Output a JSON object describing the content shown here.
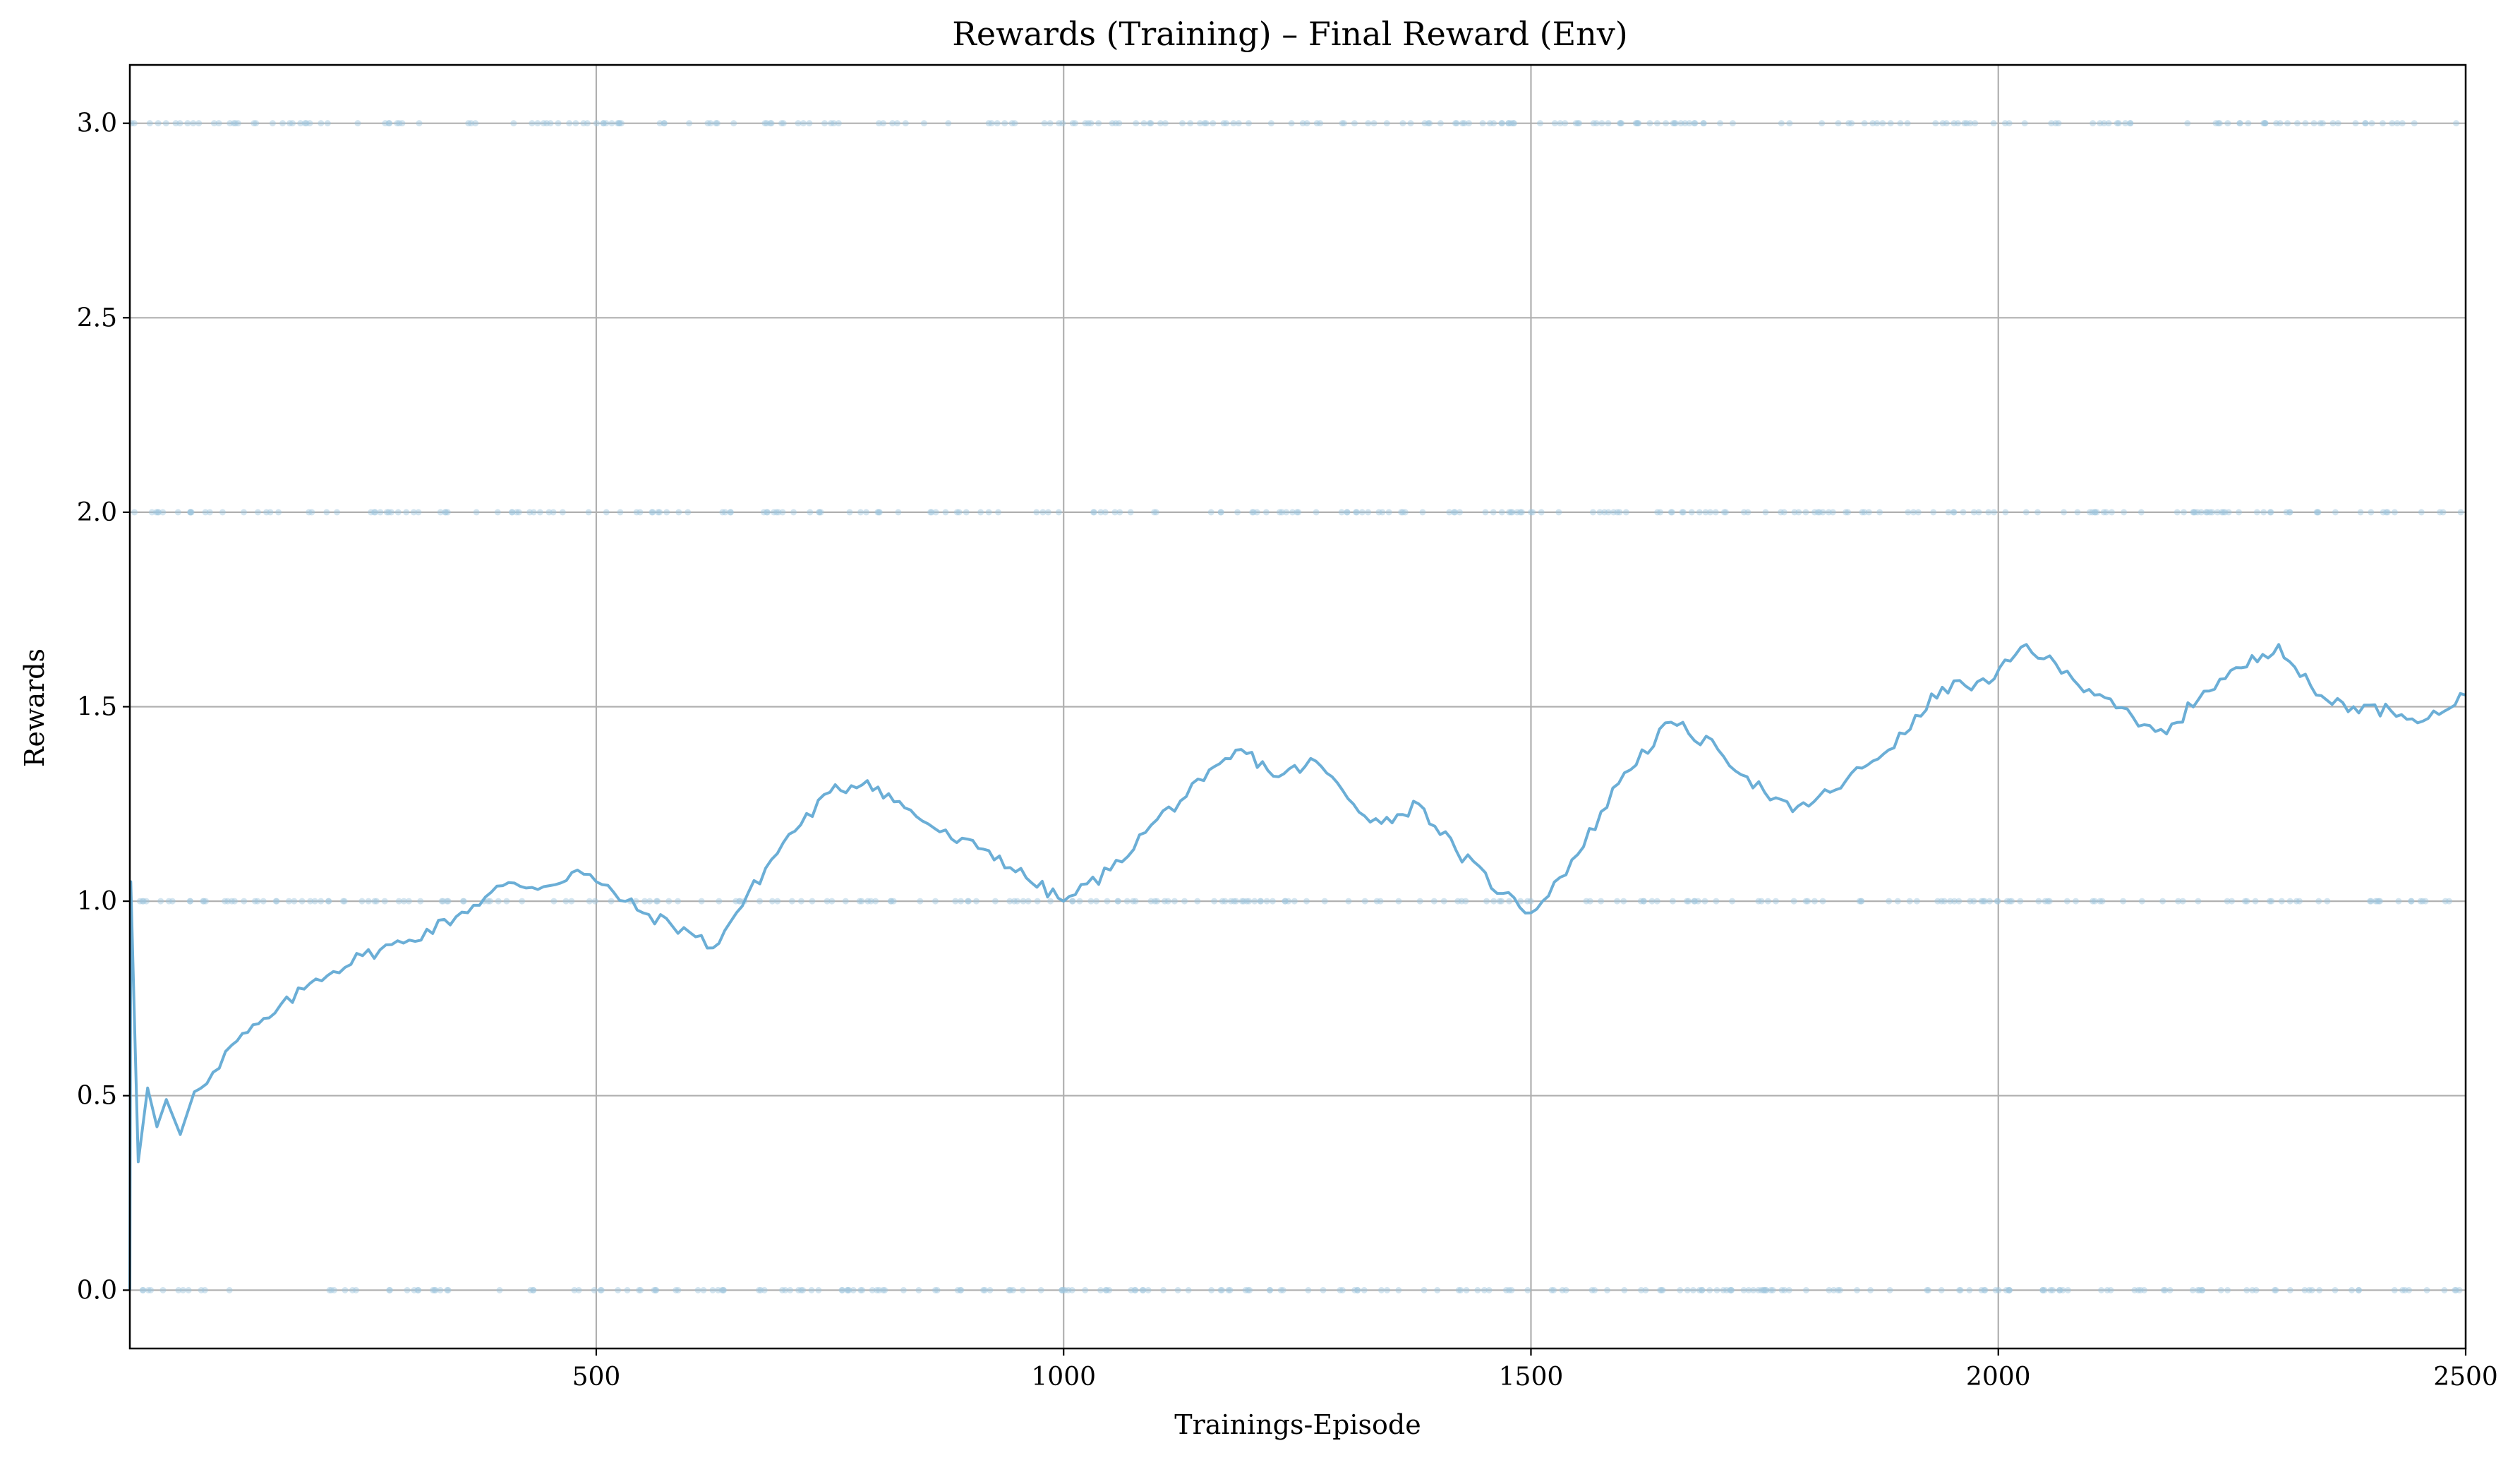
{
  "chart_data": {
    "type": "line",
    "title": "Rewards (Training) – Final Reward (Env)",
    "xlabel": "Trainings-Episode",
    "ylabel": "Rewards",
    "xlim": [
      1,
      2500
    ],
    "ylim": [
      -0.15,
      3.15
    ],
    "x_ticks": [
      500,
      1000,
      1500,
      2000,
      2500
    ],
    "x_tick_labels": [
      "500",
      "1000",
      "1500",
      "2000",
      "2500"
    ],
    "y_ticks": [
      0.0,
      0.5,
      1.0,
      1.5,
      2.0,
      2.5,
      3.0
    ],
    "y_tick_labels": [
      "0.0",
      "0.5",
      "1.0",
      "1.5",
      "2.0",
      "2.5",
      "3.0"
    ],
    "grid": true,
    "colors": {
      "line": "#6baed6",
      "points": "#9ec5de"
    },
    "series": [
      {
        "kind": "scatter",
        "description_levels": [
          0,
          1,
          2,
          3
        ],
        "points_per_level": 260
      },
      {
        "kind": "line",
        "x": [
          1,
          2,
          10,
          20,
          30,
          40,
          55,
          70,
          90,
          110,
          150,
          200,
          250,
          300,
          350,
          400,
          450,
          480,
          500,
          550,
          600,
          625,
          650,
          700,
          750,
          790,
          830,
          880,
          920,
          960,
          1000,
          1050,
          1100,
          1150,
          1190,
          1230,
          1270,
          1310,
          1340,
          1380,
          1420,
          1470,
          1500,
          1550,
          1600,
          1650,
          1700,
          1750,
          1780,
          1820,
          1860,
          1900,
          1940,
          1990,
          2030,
          2080,
          2120,
          2150,
          2180,
          2220,
          2260,
          2300,
          2340,
          2380,
          2420,
          2460,
          2500
        ],
        "y": [
          0.0,
          1.05,
          0.33,
          0.52,
          0.42,
          0.49,
          0.4,
          0.51,
          0.56,
          0.63,
          0.7,
          0.8,
          0.86,
          0.9,
          0.96,
          1.04,
          1.04,
          1.08,
          1.05,
          0.97,
          0.92,
          0.88,
          0.97,
          1.15,
          1.28,
          1.31,
          1.24,
          1.16,
          1.13,
          1.06,
          1.0,
          1.08,
          1.21,
          1.31,
          1.39,
          1.32,
          1.36,
          1.25,
          1.2,
          1.25,
          1.13,
          1.02,
          0.97,
          1.12,
          1.33,
          1.46,
          1.39,
          1.28,
          1.23,
          1.28,
          1.35,
          1.43,
          1.55,
          1.56,
          1.66,
          1.57,
          1.52,
          1.45,
          1.43,
          1.54,
          1.6,
          1.66,
          1.53,
          1.5,
          1.49,
          1.47,
          1.53
        ]
      }
    ]
  }
}
